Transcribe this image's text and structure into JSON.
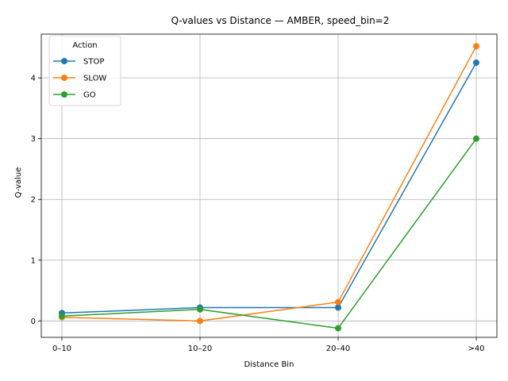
{
  "chart_data": {
    "type": "line",
    "title": "Q-values vs Distance — AMBER, speed_bin=2",
    "xlabel": "Distance Bin",
    "ylabel": "Q-value",
    "categories": [
      "0–10",
      "10–20",
      "20–40",
      ">40"
    ],
    "ylim": [
      -0.27,
      4.72
    ],
    "yticks": [
      0,
      1,
      2,
      3,
      4
    ],
    "grid": true,
    "legend": {
      "title": "Action",
      "placement": "top-left"
    },
    "series": [
      {
        "name": "STOP",
        "color": "#1f77b4",
        "values": [
          0.13,
          0.22,
          0.22,
          4.25
        ]
      },
      {
        "name": "SLOW",
        "color": "#ff7f0e",
        "values": [
          0.06,
          0.0,
          0.31,
          4.52
        ]
      },
      {
        "name": "GO",
        "color": "#2ca02c",
        "values": [
          0.08,
          0.19,
          -0.12,
          3.0
        ]
      }
    ]
  }
}
